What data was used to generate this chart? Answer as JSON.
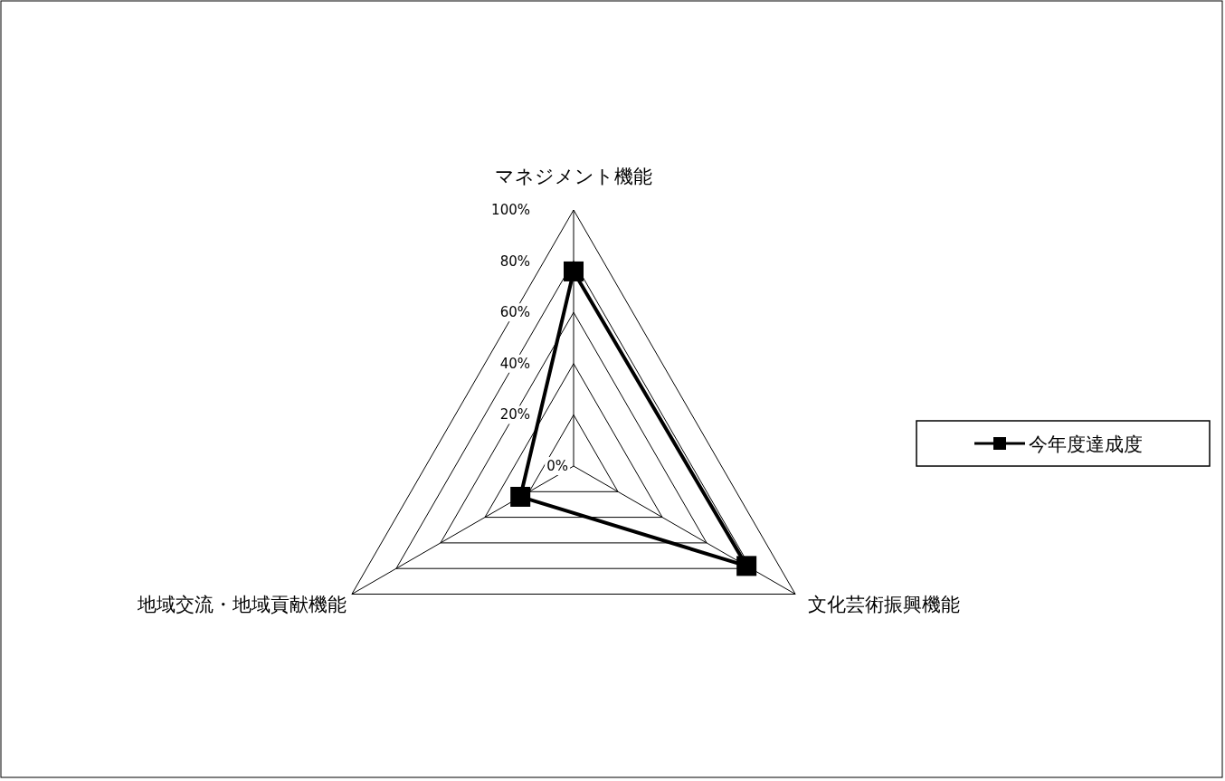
{
  "chart_data": {
    "type": "radar",
    "categories": [
      "マネジメント機能",
      "文化芸術振興機能",
      "地域交流・地域貢献機能"
    ],
    "series": [
      {
        "name": "今年度達成度",
        "color": "#000000",
        "values": [
          76,
          78,
          24
        ]
      }
    ],
    "ylim": [
      0,
      100
    ],
    "yticks": [
      {
        "value": 0,
        "label": "0%"
      },
      {
        "value": 20,
        "label": "20%"
      },
      {
        "value": 40,
        "label": "40%"
      },
      {
        "value": 60,
        "label": "60%"
      },
      {
        "value": 80,
        "label": "80%"
      },
      {
        "value": 100,
        "label": "100%"
      }
    ],
    "grid": true,
    "legend": "right",
    "marker": "square",
    "line_style": "solid"
  }
}
